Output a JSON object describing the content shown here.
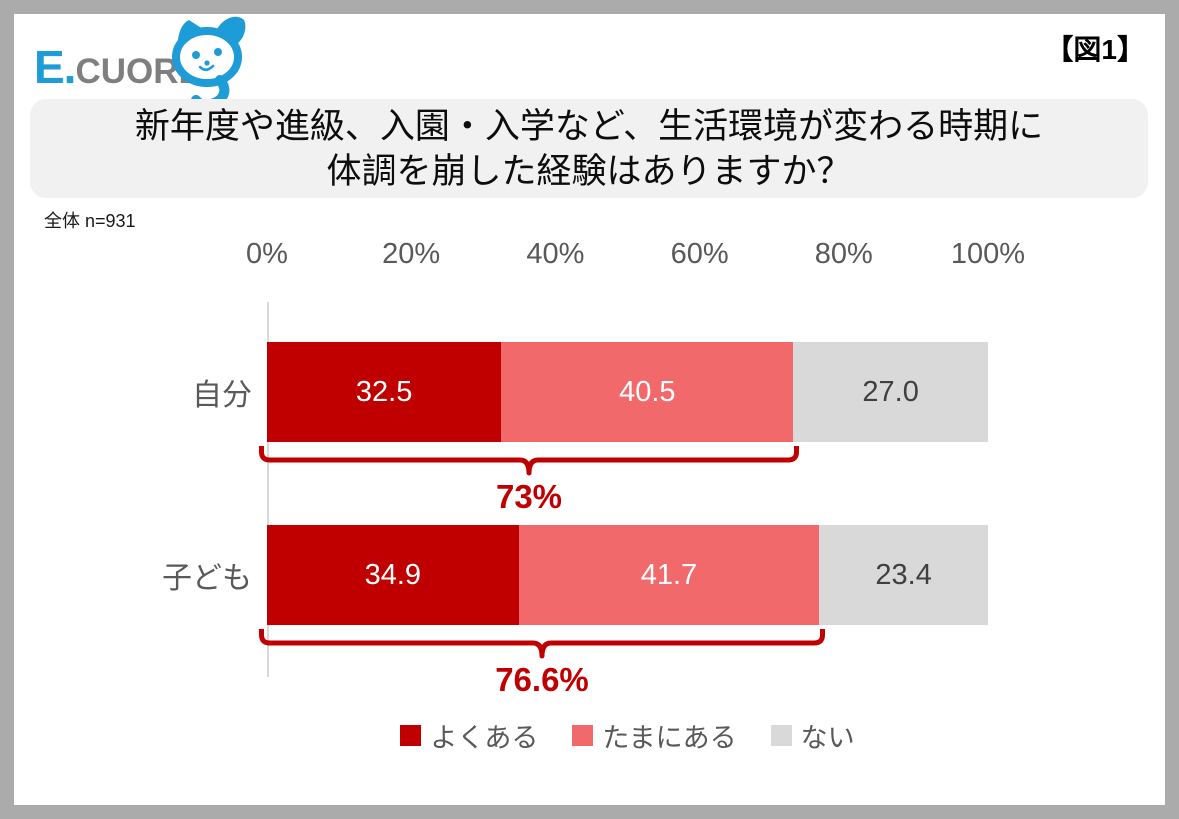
{
  "header": {
    "logo": {
      "brand_blue": "E.",
      "brand_gray": "CUORE",
      "mascot": "cat-with-question-mark"
    },
    "figure_tag": "【図1】"
  },
  "question": {
    "line1": "新年度や進級、入園・入学など、生活環境が変わる時期に",
    "line2": "体調を崩した経験はありますか？"
  },
  "sample_note": "全体 n=931",
  "chart_data": {
    "type": "bar",
    "orientation": "horizontal",
    "stacked": true,
    "axis": {
      "position": "top",
      "range": [
        0,
        100
      ],
      "ticks": [
        "0%",
        "20%",
        "40%",
        "60%",
        "80%",
        "100%"
      ]
    },
    "categories": [
      "自分",
      "子ども"
    ],
    "series": [
      {
        "name": "よくある",
        "color": "#C00000",
        "label_color": "#FFFFFF",
        "values": [
          32.5,
          34.9
        ]
      },
      {
        "name": "たまにある",
        "color": "#F2696C",
        "label_color": "#FFFFFF",
        "values": [
          40.5,
          41.7
        ]
      },
      {
        "name": "ない",
        "color": "#D9D9D9",
        "label_color": "#404040",
        "values": [
          27.0,
          23.4
        ]
      }
    ],
    "annotations": [
      {
        "category": "自分",
        "label": "73%",
        "span_percent": 73.0
      },
      {
        "category": "子ども",
        "label": "76.6%",
        "span_percent": 76.6
      }
    ],
    "legend": {
      "position": "bottom",
      "entries": [
        "よくある",
        "たまにある",
        "ない"
      ]
    },
    "grid": false
  },
  "colors": {
    "accent_dark_red": "#C00000",
    "accent_salmon": "#F2696C",
    "neutral_gray": "#D9D9D9",
    "text_gray": "#595959",
    "frame_gray": "#ABABAB",
    "title_box_bg": "#F1F1F1",
    "logo_blue": "#1E9CD8",
    "logo_gray": "#7F7F7F"
  }
}
